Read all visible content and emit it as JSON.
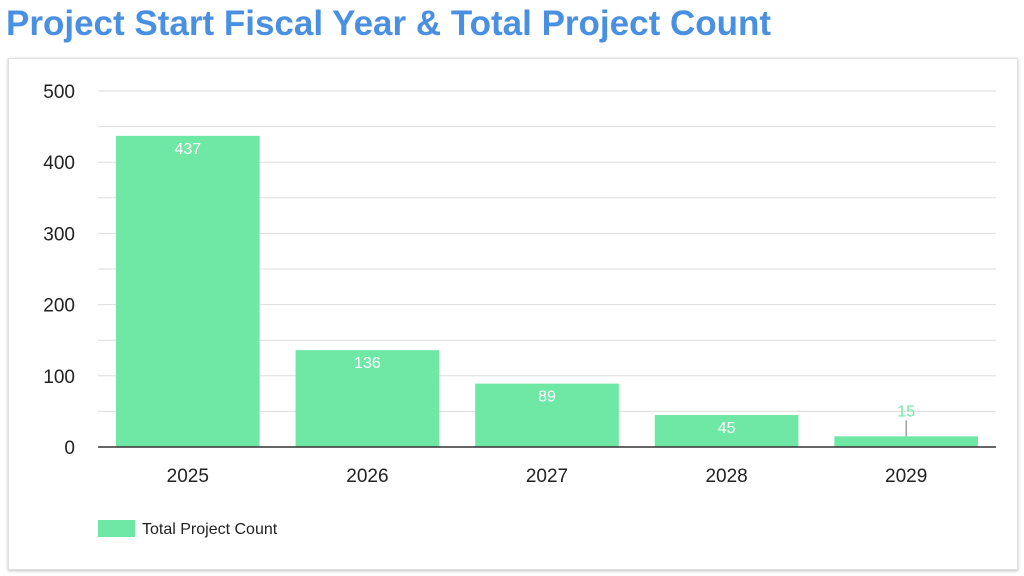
{
  "page": {
    "title": "Project Start Fiscal Year & Total Project Count"
  },
  "colors": {
    "title": "#4a90e2",
    "bar": "#6fe8a6",
    "data_label_inside": "#ffffff",
    "data_label_outside": "#6fe8a6",
    "gridline": "#dddddd",
    "axis": "#333333"
  },
  "chart_data": {
    "type": "bar",
    "categories": [
      "2025",
      "2026",
      "2027",
      "2028",
      "2029"
    ],
    "series": [
      {
        "name": "Total Project Count",
        "values": [
          437,
          136,
          89,
          45,
          15
        ]
      }
    ],
    "data_labels": [
      "437",
      "136",
      "89",
      "45",
      "15"
    ],
    "y_ticks": [
      0,
      100,
      200,
      300,
      400,
      500
    ],
    "y_tick_labels": [
      "0",
      "100",
      "200",
      "300",
      "400",
      "500"
    ],
    "ylim": [
      0,
      500
    ],
    "minor_gridlines": true,
    "grid": true,
    "legend": {
      "position": "bottom-left",
      "entries": [
        "Total Project Count"
      ]
    },
    "title": "Project Start Fiscal Year & Total Project Count",
    "xlabel": "",
    "ylabel": ""
  }
}
